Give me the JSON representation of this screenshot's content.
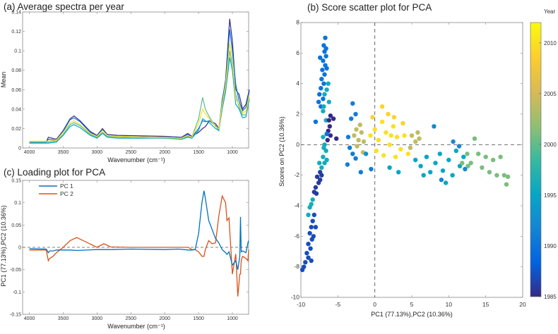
{
  "colormap": [
    "#352a87",
    "#0363e1",
    "#1485d4",
    "#06a7c6",
    "#38b99e",
    "#92bf73",
    "#d9ba56",
    "#fcce2e",
    "#f9fb0e"
  ],
  "chart_data": [
    {
      "id": "a",
      "type": "line",
      "title": "(a) Average spectra per year",
      "xlabel": "Wavenumber (cm⁻¹)",
      "ylabel": "Mean",
      "xlim": [
        4100,
        760
      ],
      "ylim": [
        0,
        0.14
      ],
      "x_reversed": true,
      "xticks": [
        4000,
        3500,
        3000,
        2500,
        2000,
        1500,
        1000
      ],
      "yticks": [
        0,
        0.02,
        0.04,
        0.06,
        0.08,
        0.1,
        0.12,
        0.14
      ],
      "ytick_labels": [
        "0",
        "0.02",
        "0.04",
        "0.06",
        "0.08",
        "0.1",
        "0.12",
        "0.14"
      ],
      "x": [
        4000,
        3750,
        3720,
        3600,
        3500,
        3400,
        3340,
        3250,
        3100,
        3000,
        2920,
        2850,
        2700,
        2000,
        1750,
        1660,
        1600,
        1500,
        1440,
        1400,
        1340,
        1250,
        1200,
        1150,
        1100,
        1040,
        1000,
        950,
        900,
        850,
        800,
        750
      ],
      "series": [
        {
          "year": 1985,
          "values": [
            0.006,
            0.006,
            0.011,
            0.009,
            0.018,
            0.03,
            0.033,
            0.028,
            0.017,
            0.013,
            0.02,
            0.014,
            0.013,
            0.012,
            0.011,
            0.015,
            0.012,
            0.016,
            0.02,
            0.022,
            0.028,
            0.025,
            0.02,
            0.048,
            0.07,
            0.133,
            0.11,
            0.06,
            0.055,
            0.04,
            0.045,
            0.06
          ]
        },
        {
          "year": 1990,
          "values": [
            0.006,
            0.006,
            0.009,
            0.008,
            0.017,
            0.029,
            0.031,
            0.027,
            0.016,
            0.012,
            0.019,
            0.013,
            0.012,
            0.011,
            0.01,
            0.014,
            0.011,
            0.02,
            0.028,
            0.027,
            0.028,
            0.023,
            0.018,
            0.05,
            0.068,
            0.122,
            0.1,
            0.065,
            0.048,
            0.038,
            0.042,
            0.058
          ]
        },
        {
          "year": 1995,
          "values": [
            0.005,
            0.005,
            0.005,
            0.006,
            0.013,
            0.022,
            0.024,
            0.021,
            0.013,
            0.01,
            0.015,
            0.011,
            0.01,
            0.01,
            0.009,
            0.011,
            0.01,
            0.018,
            0.03,
            0.028,
            0.026,
            0.02,
            0.018,
            0.04,
            0.058,
            0.093,
            0.08,
            0.045,
            0.04,
            0.031,
            0.032,
            0.05
          ]
        },
        {
          "year": 2000,
          "values": [
            0.006,
            0.006,
            0.006,
            0.007,
            0.014,
            0.024,
            0.026,
            0.023,
            0.014,
            0.011,
            0.016,
            0.012,
            0.011,
            0.01,
            0.01,
            0.012,
            0.011,
            0.03,
            0.052,
            0.04,
            0.032,
            0.022,
            0.019,
            0.043,
            0.062,
            0.1,
            0.085,
            0.055,
            0.042,
            0.034,
            0.034,
            0.052
          ]
        },
        {
          "year": 2010,
          "values": [
            0.007,
            0.007,
            0.007,
            0.008,
            0.016,
            0.026,
            0.028,
            0.024,
            0.015,
            0.012,
            0.018,
            0.013,
            0.012,
            0.011,
            0.01,
            0.013,
            0.011,
            0.025,
            0.04,
            0.035,
            0.03,
            0.022,
            0.02,
            0.045,
            0.065,
            0.108,
            0.09,
            0.05,
            0.045,
            0.036,
            0.038,
            0.055
          ]
        }
      ]
    },
    {
      "id": "b",
      "type": "scatter",
      "title": "(b) Score scatter plot for PCA",
      "xlabel": "PC1 (77.13%),PC2 (10.36%)",
      "ylabel": "Scores on PC2 (10.36%)",
      "xlim": [
        -10,
        20
      ],
      "ylim": [
        -10,
        8
      ],
      "xticks": [
        -10,
        -5,
        0,
        5,
        10,
        15,
        20
      ],
      "yticks": [
        -10,
        -8,
        -6,
        -4,
        -2,
        0,
        2,
        4,
        6,
        8
      ],
      "reference_lines": {
        "x": 0,
        "y": 0,
        "style": "dashed"
      },
      "colorbar": {
        "label": "Year",
        "clim": [
          1985,
          2012
        ],
        "ticks": [
          1985,
          1990,
          1995,
          2000,
          2005,
          2010
        ]
      },
      "points": [
        [
          -6.7,
          7.0,
          1990
        ],
        [
          -6.9,
          6.5,
          1990
        ],
        [
          -6.8,
          6.1,
          1990
        ],
        [
          -6.6,
          5.8,
          1990
        ],
        [
          -7.0,
          5.5,
          1990
        ],
        [
          -6.7,
          5.2,
          1990
        ],
        [
          -7.1,
          4.9,
          1990
        ],
        [
          -6.8,
          4.6,
          1990
        ],
        [
          -7.2,
          4.3,
          1990
        ],
        [
          -6.9,
          4.0,
          1990
        ],
        [
          -7.3,
          3.7,
          1990
        ],
        [
          -7.5,
          3.3,
          1990
        ],
        [
          -7.0,
          3.0,
          1990
        ],
        [
          -7.6,
          2.8,
          1990
        ],
        [
          -7.3,
          2.5,
          1990
        ],
        [
          -6.6,
          6.3,
          1990
        ],
        [
          -6.5,
          5.0,
          1990
        ],
        [
          -7.4,
          5.7,
          1990
        ],
        [
          -6.3,
          4.0,
          1996
        ],
        [
          -6.5,
          3.6,
          1996
        ],
        [
          -6.8,
          3.3,
          1996
        ],
        [
          -6.2,
          2.8,
          1996
        ],
        [
          -6.9,
          2.5,
          1996
        ],
        [
          -7.0,
          2.2,
          1996
        ],
        [
          -6.6,
          1.6,
          1996
        ],
        [
          -8.0,
          1.5,
          1990
        ],
        [
          -6.0,
          1.9,
          1985
        ],
        [
          -6.2,
          1.6,
          1985
        ],
        [
          -6.1,
          1.2,
          1985
        ],
        [
          -6.3,
          0.9,
          1985
        ],
        [
          -6.0,
          0.6,
          1985
        ],
        [
          -6.4,
          0.3,
          1985
        ],
        [
          -5.6,
          1.7,
          1985
        ],
        [
          -5.2,
          0.4,
          1985
        ],
        [
          -6.5,
          0.7,
          1990
        ],
        [
          -7.0,
          0.5,
          1996
        ],
        [
          -6.8,
          0.0,
          1996
        ],
        [
          -6.6,
          -0.4,
          1996
        ],
        [
          -7.0,
          -0.8,
          1996
        ],
        [
          -6.8,
          -1.2,
          1996
        ],
        [
          -7.2,
          -1.5,
          1996
        ],
        [
          -6.5,
          -1.0,
          1996
        ],
        [
          -6.9,
          -0.2,
          1996
        ],
        [
          -7.5,
          -1.2,
          1996
        ],
        [
          -7.4,
          -1.8,
          1986
        ],
        [
          -7.8,
          -2.1,
          1986
        ],
        [
          -7.6,
          -2.5,
          1986
        ],
        [
          -8.0,
          -2.8,
          1986
        ],
        [
          -8.2,
          -3.1,
          1986
        ],
        [
          -7.4,
          -2.3,
          1986
        ],
        [
          -7.9,
          -3.2,
          1986
        ],
        [
          -7.2,
          -2.0,
          1986
        ],
        [
          -8.4,
          -3.6,
          1996
        ],
        [
          -8.6,
          -3.9,
          1996
        ],
        [
          -8.8,
          -4.1,
          1996
        ],
        [
          -9.0,
          -4.6,
          1996
        ],
        [
          -8.2,
          -4.6,
          1987
        ],
        [
          -8.4,
          -5.0,
          1987
        ],
        [
          -8.6,
          -5.4,
          1987
        ],
        [
          -8.8,
          -5.8,
          1987
        ],
        [
          -8.5,
          -6.2,
          1987
        ],
        [
          -9.0,
          -6.5,
          1987
        ],
        [
          -8.7,
          -6.8,
          1987
        ],
        [
          -9.2,
          -7.1,
          1987
        ],
        [
          -9.0,
          -7.4,
          1987
        ],
        [
          -9.4,
          -7.7,
          1987
        ],
        [
          -9.6,
          -8.0,
          1987
        ],
        [
          -9.8,
          -8.2,
          1987
        ],
        [
          -8.3,
          -6.0,
          1987
        ],
        [
          -8.6,
          -7.6,
          1987
        ],
        [
          -8.0,
          -5.4,
          1987
        ],
        [
          -2.8,
          0.6,
          2004
        ],
        [
          -2.5,
          1.0,
          2004
        ],
        [
          -2.2,
          0.3,
          2004
        ],
        [
          -1.8,
          0.8,
          2004
        ],
        [
          -2.4,
          -0.1,
          2004
        ],
        [
          -1.5,
          0.2,
          2004
        ],
        [
          -2.0,
          1.3,
          2004
        ],
        [
          -1.6,
          -0.5,
          2004
        ],
        [
          -3.6,
          0.5,
          1991
        ],
        [
          -3.4,
          -0.2,
          1991
        ],
        [
          -3.0,
          -0.6,
          1991
        ],
        [
          -2.6,
          -0.9,
          1991
        ],
        [
          -3.2,
          1.7,
          1991
        ],
        [
          -3.7,
          -1.3,
          1991
        ],
        [
          -1.9,
          -1.8,
          1991
        ],
        [
          -0.5,
          -1.6,
          1991
        ],
        [
          -2.6,
          2.0,
          1991
        ],
        [
          -3.0,
          2.7,
          1991
        ],
        [
          -1.2,
          -0.6,
          1993
        ],
        [
          0.0,
          1.0,
          2010
        ],
        [
          0.5,
          0.3,
          2010
        ],
        [
          1.0,
          1.5,
          2010
        ],
        [
          1.5,
          0.8,
          2010
        ],
        [
          2.0,
          0.0,
          2010
        ],
        [
          2.5,
          1.2,
          2010
        ],
        [
          3.0,
          0.5,
          2010
        ],
        [
          3.5,
          -0.3,
          2010
        ],
        [
          0.2,
          -0.4,
          2010
        ],
        [
          1.2,
          -0.7,
          2010
        ],
        [
          2.8,
          -0.8,
          2010
        ],
        [
          4.0,
          0.6,
          2010
        ],
        [
          1.8,
          2.0,
          2009
        ],
        [
          1.0,
          2.5,
          2009
        ],
        [
          -0.6,
          0.6,
          2010
        ],
        [
          3.8,
          1.4,
          2009
        ],
        [
          2.2,
          0.6,
          2010
        ],
        [
          4.5,
          -0.6,
          2010
        ],
        [
          -0.3,
          1.8,
          2009
        ],
        [
          2.6,
          1.8,
          2009
        ],
        [
          5.0,
          0.6,
          2004
        ],
        [
          5.5,
          0.2,
          2004
        ],
        [
          5.8,
          0.8,
          2004
        ],
        [
          4.8,
          -0.2,
          2004
        ],
        [
          6.0,
          0.4,
          2004
        ],
        [
          5.5,
          -1.0,
          1995
        ],
        [
          6.2,
          -1.4,
          1995
        ],
        [
          7.0,
          -0.8,
          1995
        ],
        [
          7.5,
          -1.8,
          1995
        ],
        [
          8.2,
          -1.2,
          1995
        ],
        [
          8.8,
          -0.6,
          1995
        ],
        [
          9.2,
          -1.7,
          1995
        ],
        [
          10.0,
          -1.0,
          1995
        ],
        [
          10.5,
          -2.0,
          1995
        ],
        [
          11.0,
          -0.4,
          1995
        ],
        [
          11.5,
          -1.4,
          1995
        ],
        [
          12.0,
          -0.8,
          1995
        ],
        [
          9.6,
          -2.5,
          1995
        ],
        [
          6.6,
          -2.0,
          1995
        ],
        [
          3.2,
          -1.8,
          1995
        ],
        [
          2.0,
          -1.5,
          1995
        ],
        [
          8.0,
          1.2,
          1992
        ],
        [
          10.6,
          0.2,
          1992
        ],
        [
          11.4,
          -0.1,
          1992
        ],
        [
          12.2,
          -1.6,
          1992
        ],
        [
          9.0,
          -2.3,
          1992
        ],
        [
          12.5,
          -0.6,
          2001
        ],
        [
          13.0,
          -1.2,
          2001
        ],
        [
          13.5,
          0.4,
          2001
        ],
        [
          14.0,
          -0.6,
          2001
        ],
        [
          14.5,
          -1.5,
          2001
        ],
        [
          15.0,
          -0.8,
          2001
        ],
        [
          15.5,
          -1.8,
          2001
        ],
        [
          16.0,
          -1.0,
          2001
        ],
        [
          16.5,
          -2.0,
          2001
        ],
        [
          17.0,
          -0.8,
          2001
        ],
        [
          17.5,
          -2.0,
          2001
        ],
        [
          18.0,
          -2.1,
          2001
        ],
        [
          17.8,
          -2.6,
          2001
        ],
        [
          11.8,
          -1.2,
          2001
        ],
        [
          12.6,
          -1.4,
          2001
        ]
      ]
    },
    {
      "id": "c",
      "type": "line",
      "title": "(c) Loading plot for PCA",
      "xlabel": "Wavenumber (cm⁻¹)",
      "ylabel": "PC1 (77.13%),PC2 (10.36%)",
      "xlim": [
        4100,
        760
      ],
      "ylim": [
        -0.15,
        0.15
      ],
      "x_reversed": true,
      "xticks": [
        4000,
        3500,
        3000,
        2500,
        2000,
        1500,
        1000
      ],
      "yticks": [
        -0.15,
        -0.1,
        -0.05,
        0,
        0.05,
        0.1,
        0.15
      ],
      "ytick_labels": [
        "-0.15",
        "-0.1",
        "-0.05",
        "0",
        "0.05",
        "0.1",
        "0.15"
      ],
      "legend_position": "top-left",
      "reference_lines": {
        "y": 0,
        "style": "dashed"
      },
      "x": [
        4000,
        3750,
        3720,
        3700,
        3650,
        3600,
        3500,
        3400,
        3300,
        3000,
        2900,
        2800,
        2500,
        2000,
        1800,
        1650,
        1600,
        1550,
        1500,
        1450,
        1420,
        1400,
        1350,
        1300,
        1250,
        1200,
        1150,
        1100,
        1080,
        1050,
        1000,
        950,
        920,
        890,
        880,
        870,
        850,
        800,
        770,
        760
      ],
      "series": [
        {
          "name": "PC 1",
          "color": "#0072bd",
          "values": [
            -0.003,
            -0.004,
            -0.012,
            -0.008,
            -0.008,
            -0.006,
            -0.006,
            -0.006,
            -0.007,
            -0.005,
            -0.005,
            -0.005,
            -0.004,
            -0.005,
            -0.004,
            -0.006,
            -0.006,
            -0.005,
            0.03,
            0.1,
            0.127,
            0.11,
            0.06,
            0.04,
            0.02,
            0.01,
            -0.005,
            -0.012,
            -0.016,
            -0.01,
            -0.04,
            -0.03,
            -0.05,
            -0.02,
            0.068,
            -0.01,
            -0.008,
            -0.012,
            0.01,
            0.015
          ]
        },
        {
          "name": "PC 2",
          "color": "#d95319",
          "values": [
            -0.006,
            -0.006,
            -0.03,
            -0.025,
            -0.02,
            -0.012,
            0.0,
            0.015,
            0.022,
            0.0,
            0.008,
            0.001,
            0.0,
            0.0,
            0.0,
            0.0,
            -0.005,
            -0.005,
            -0.01,
            -0.02,
            -0.02,
            -0.005,
            0.015,
            0.008,
            0.01,
            0.07,
            0.115,
            0.1,
            0.06,
            0.066,
            -0.06,
            -0.015,
            -0.11,
            -0.06,
            -0.06,
            -0.03,
            -0.02,
            -0.025,
            -0.03,
            -0.005
          ]
        }
      ]
    }
  ]
}
